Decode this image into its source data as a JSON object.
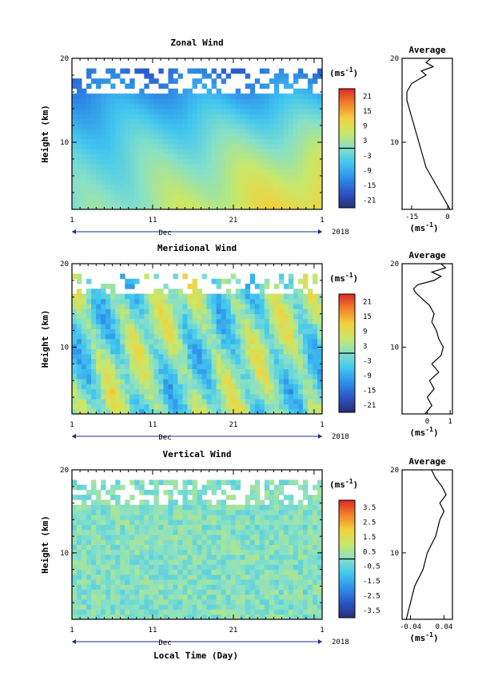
{
  "xlabel": "Local Time (Day)",
  "chart_data": [
    {
      "type": "heatmap",
      "title": "Zonal Wind",
      "ylabel": "Height (km)",
      "ylim": [
        2,
        20
      ],
      "yticks": [
        10,
        20
      ],
      "xlim": [
        1,
        32
      ],
      "xtick_labels": [
        "1",
        "11",
        "21",
        "1"
      ],
      "month_label": "Dec",
      "year_label": "2018",
      "colorbar": {
        "unit": "(ms",
        "unit_exp": "-1",
        "unit_close": ")",
        "ticks": [
          "21",
          "15",
          "9",
          "3",
          "-3",
          "-9",
          "-15",
          "-21"
        ],
        "range": [
          -24,
          24
        ]
      },
      "profile": {
        "title": "Average",
        "xlabel": "(ms",
        "xlabel_exp": "-1",
        "xlabel_close": ")",
        "xlim": [
          -19,
          2
        ],
        "xticks": [
          "-15",
          "0"
        ],
        "ylim": [
          2,
          20
        ],
        "yticks": [
          "10",
          "20"
        ],
        "heights": [
          2,
          3,
          4,
          5,
          6,
          7,
          8,
          9,
          10,
          11,
          12,
          13,
          14,
          15,
          16,
          16.5,
          17,
          17.5,
          18,
          18.5,
          19,
          19.5,
          20
        ],
        "values": [
          1,
          -1,
          -3,
          -5,
          -7,
          -9,
          -10,
          -11,
          -12,
          -13,
          -14,
          -15,
          -16,
          -17,
          -17,
          -16,
          -15,
          -12,
          -9,
          -11,
          -6,
          -9,
          -7
        ]
      }
    },
    {
      "type": "heatmap",
      "title": "Meridional Wind",
      "ylabel": "Height (km)",
      "ylim": [
        2,
        20
      ],
      "yticks": [
        10,
        20
      ],
      "xlim": [
        1,
        32
      ],
      "xtick_labels": [
        "1",
        "11",
        "21",
        "1"
      ],
      "month_label": "Dec",
      "year_label": "2018",
      "colorbar": {
        "unit": "(ms",
        "unit_exp": "-1",
        "unit_close": ")",
        "ticks": [
          "21",
          "15",
          "9",
          "3",
          "-3",
          "-9",
          "-15",
          "-21"
        ],
        "range": [
          -24,
          24
        ]
      },
      "profile": {
        "title": "Average",
        "xlabel": "(ms",
        "xlabel_exp": "-1",
        "xlabel_close": ")",
        "xlim": [
          -1.1,
          1.1
        ],
        "xticks": [
          "0",
          "1"
        ],
        "ylim": [
          2,
          20
        ],
        "yticks": [
          "10",
          "20"
        ],
        "heights": [
          2,
          3,
          4,
          5,
          6,
          7,
          8,
          9,
          10,
          11,
          12,
          13,
          14,
          15,
          16,
          16.5,
          17,
          17.5,
          18,
          18.5,
          19,
          19.5,
          20
        ],
        "values": [
          -0.1,
          0.2,
          0.0,
          0.3,
          0.1,
          0.5,
          0.2,
          0.6,
          0.7,
          0.5,
          0.4,
          0.2,
          0.3,
          0.1,
          -0.3,
          -0.5,
          -0.6,
          -0.4,
          0.3,
          0.6,
          0.2,
          0.8,
          0.6
        ]
      }
    },
    {
      "type": "heatmap",
      "title": "Vertical Wind",
      "ylabel": "Height (km)",
      "ylim": [
        2,
        20
      ],
      "yticks": [
        10,
        20
      ],
      "xlim": [
        1,
        32
      ],
      "xtick_labels": [
        "1",
        "11",
        "21",
        "1"
      ],
      "month_label": "Dec",
      "year_label": "2018",
      "colorbar": {
        "unit": "(ms",
        "unit_exp": "-1",
        "unit_close": ")",
        "ticks": [
          "3.5",
          "2.5",
          "1.5",
          "0.5",
          "-0.5",
          "-1.5",
          "-2.5",
          "-3.5"
        ],
        "range": [
          -4,
          4
        ]
      },
      "profile": {
        "title": "Average",
        "xlabel": "(ms",
        "xlabel_exp": "-1",
        "xlabel_close": ")",
        "xlim": [
          -0.06,
          0.06
        ],
        "xticks": [
          "-0.04",
          "0.04"
        ],
        "ylim": [
          2,
          20
        ],
        "yticks": [
          "10",
          "20"
        ],
        "heights": [
          2,
          3,
          4,
          5,
          6,
          7,
          8,
          9,
          10,
          11,
          12,
          13,
          14,
          15,
          16,
          17,
          18,
          19,
          20
        ],
        "values": [
          -0.05,
          -0.045,
          -0.04,
          -0.035,
          -0.03,
          -0.02,
          -0.01,
          -0.005,
          0.0,
          0.01,
          0.02,
          0.025,
          0.03,
          0.04,
          0.03,
          0.045,
          0.035,
          0.02,
          0.01
        ]
      }
    }
  ]
}
